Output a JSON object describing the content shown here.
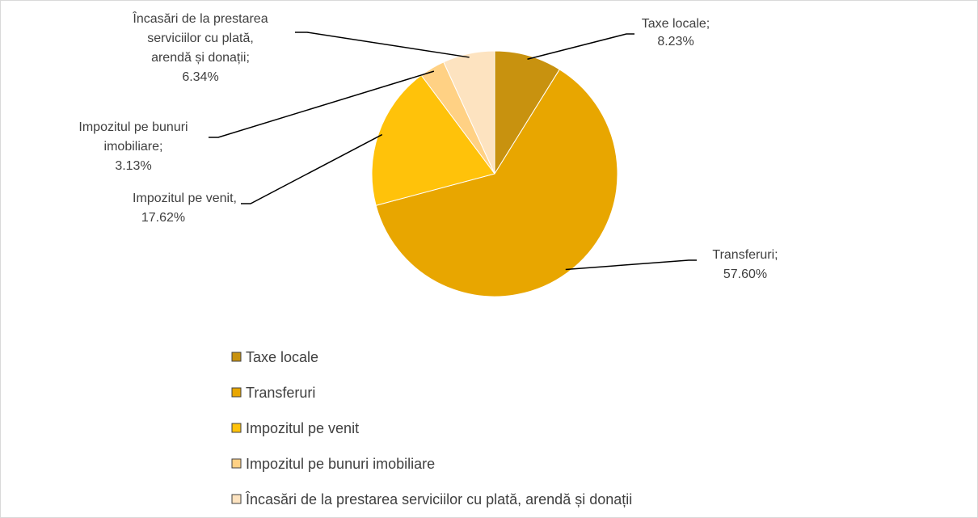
{
  "chart_data": {
    "type": "pie",
    "categories": [
      "Taxe locale",
      "Transferuri",
      "Impozitul pe venit",
      "Impozitul pe bunuri imobiliare",
      "Încasări de la prestarea serviciilor cu plată, arendă și donații"
    ],
    "values": [
      8.23,
      57.6,
      17.62,
      3.13,
      6.34
    ],
    "value_labels": [
      [
        "Taxe locale;",
        "8.23%"
      ],
      [
        "Transferuri;",
        "57.60%"
      ],
      [
        "Impozitul pe venit,",
        "17.62%"
      ],
      [
        "Impozitul pe bunuri",
        "imobiliare;",
        "3.13%"
      ],
      [
        "Încasări de la prestarea",
        "serviciilor cu plată,",
        "arendă și donații;",
        "6.34%"
      ]
    ],
    "colors": [
      "#c8920f",
      "#e8a600",
      "#ffc20a",
      "#ffd184",
      "#fde3c0"
    ],
    "legend": "bottom"
  }
}
